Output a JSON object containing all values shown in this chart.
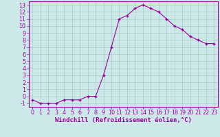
{
  "x": [
    0,
    1,
    2,
    3,
    4,
    5,
    6,
    7,
    8,
    9,
    10,
    11,
    12,
    13,
    14,
    15,
    16,
    17,
    18,
    19,
    20,
    21,
    22,
    23
  ],
  "y": [
    -0.5,
    -1.0,
    -1.0,
    -1.0,
    -0.5,
    -0.5,
    -0.5,
    0.0,
    0.0,
    3.0,
    7.0,
    11.0,
    11.5,
    12.5,
    13.0,
    12.5,
    12.0,
    11.0,
    10.0,
    9.5,
    8.5,
    8.0,
    7.5,
    7.5
  ],
  "line_color": "#990099",
  "marker": "+",
  "bg_color": "#cce8e8",
  "grid_color": "#aacaca",
  "xlabel": "Windchill (Refroidissement éolien,°C)",
  "xlabel_color": "#990099",
  "tick_color": "#990099",
  "yticks": [
    -1,
    0,
    1,
    2,
    3,
    4,
    5,
    6,
    7,
    8,
    9,
    10,
    11,
    12,
    13
  ],
  "xticks": [
    0,
    1,
    2,
    3,
    4,
    5,
    6,
    7,
    8,
    9,
    10,
    11,
    12,
    13,
    14,
    15,
    16,
    17,
    18,
    19,
    20,
    21,
    22,
    23
  ],
  "xlim": [
    -0.5,
    23.5
  ],
  "ylim": [
    -1.5,
    13.5
  ],
  "border_color": "#990099",
  "xlabel_fontsize": 6.5,
  "tick_fontsize": 5.8
}
